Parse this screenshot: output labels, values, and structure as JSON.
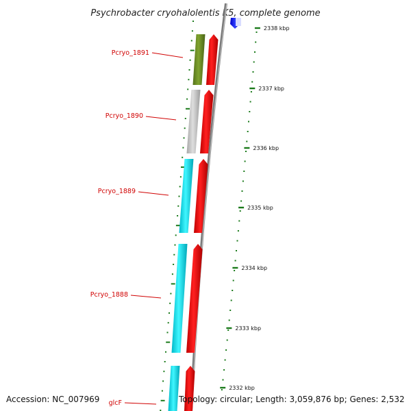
{
  "title": "Psychrobacter cryohalolentis K5, complete genome",
  "footer": {
    "accession": "Accession: NC_007969",
    "summary": "Topology: circular; Length: 3,059,876 bp; Genes: 2,532"
  },
  "scale": {
    "ticks": [
      "2338 kbp",
      "2337 kbp",
      "2336 kbp",
      "2335 kbp",
      "2334 kbp",
      "2333 kbp",
      "2332 kbp"
    ]
  },
  "genes": [
    {
      "name": "Pcryo_1891",
      "color": "#6b8e23",
      "kind": "forward-colored"
    },
    {
      "name": "Pcryo_1890",
      "color": "#bdbdbd",
      "kind": "forward-colored"
    },
    {
      "name": "Pcryo_1889",
      "color": "#00e0f0",
      "kind": "forward-colored"
    },
    {
      "name": "Pcryo_1888",
      "color": "#00e0f0",
      "kind": "forward-colored"
    },
    {
      "name": "glcF",
      "color": "#00e0f0",
      "kind": "forward-colored"
    }
  ],
  "colors": {
    "cds_strand": "#ff0000",
    "backbone": "#808080",
    "gene_label": "#d00000",
    "tick_mark": "#1a7a1a",
    "top_feature": "#0000ff"
  }
}
